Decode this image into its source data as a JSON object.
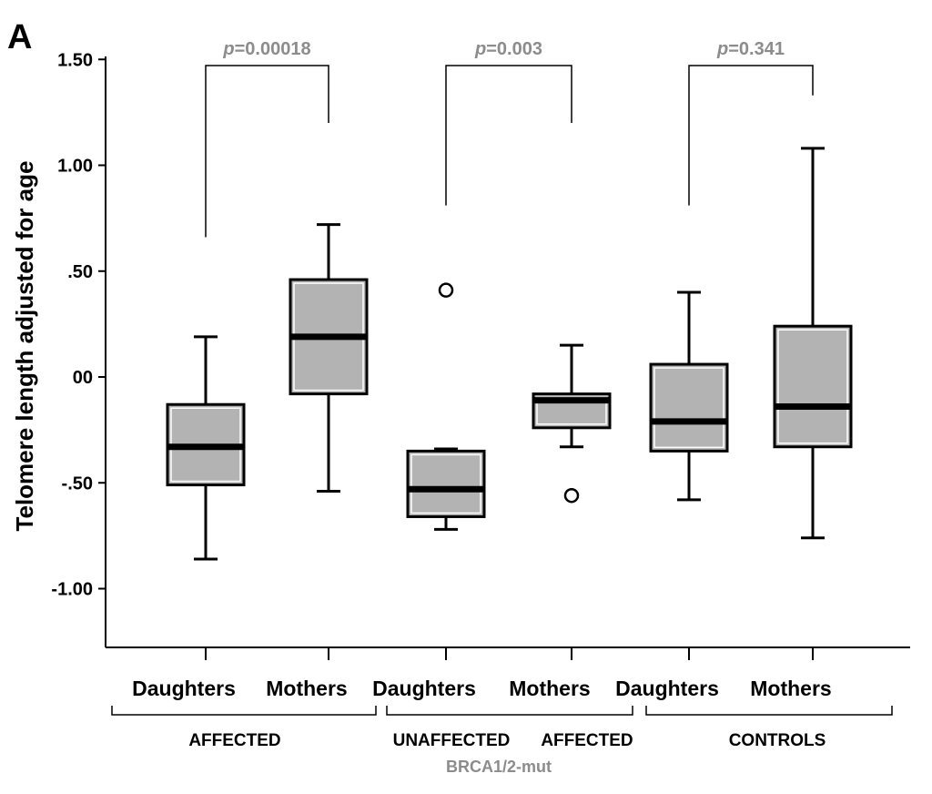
{
  "panel_label": "A",
  "chart_data": {
    "type": "box",
    "ylabel": "Telomere length adjusted for age",
    "ylim": [
      -1.25,
      1.5
    ],
    "yticks": [
      1.5,
      1.0,
      0.5,
      0.0,
      -0.5,
      -1.0
    ],
    "ytick_labels": [
      "1.50",
      "1.00",
      ".50",
      "00",
      "-.50",
      "-1.00"
    ],
    "grid": false,
    "box_color": "#b3b3b3",
    "boxes": [
      {
        "label": "Daughters",
        "group": "AFFECTED",
        "whisker_low": -0.86,
        "q1": -0.51,
        "median": -0.33,
        "q3": -0.13,
        "whisker_high": 0.19,
        "outliers": []
      },
      {
        "label": "Mothers",
        "group": "AFFECTED",
        "whisker_low": -0.54,
        "q1": -0.08,
        "median": 0.19,
        "q3": 0.46,
        "whisker_high": 0.72,
        "outliers": []
      },
      {
        "label": "Daughters",
        "group": "UNAFFECTED",
        "whisker_low": -0.72,
        "q1": -0.66,
        "median": -0.53,
        "q3": -0.35,
        "whisker_high": -0.34,
        "outliers": [
          0.41
        ]
      },
      {
        "label": "Mothers",
        "group": "AFFECTED",
        "whisker_low": -0.33,
        "q1": -0.24,
        "median": -0.11,
        "q3": -0.08,
        "whisker_high": 0.15,
        "outliers": [
          -0.56
        ]
      },
      {
        "label": "Daughters",
        "group": "CONTROLS",
        "whisker_low": -0.58,
        "q1": -0.35,
        "median": -0.21,
        "q3": 0.06,
        "whisker_high": 0.4,
        "outliers": []
      },
      {
        "label": "Mothers",
        "group": "CONTROLS",
        "whisker_low": -0.76,
        "q1": -0.33,
        "median": -0.14,
        "q3": 0.24,
        "whisker_high": 1.08,
        "outliers": []
      }
    ],
    "comparisons": [
      {
        "pair": [
          0,
          1
        ],
        "p_prefix": "p",
        "p_value": "=0.00018",
        "left_bottom": 0.66,
        "right_bottom": 1.2
      },
      {
        "pair": [
          2,
          3
        ],
        "p_prefix": "p",
        "p_value": "=0.003",
        "left_bottom": 0.81,
        "right_bottom": 1.2
      },
      {
        "pair": [
          4,
          5
        ],
        "p_prefix": "p",
        "p_value": "=0.341",
        "left_bottom": 0.81,
        "right_bottom": 1.33
      }
    ],
    "group_brackets": [
      {
        "span": [
          0,
          1
        ]
      },
      {
        "span": [
          2,
          3
        ]
      },
      {
        "span": [
          4,
          5
        ]
      }
    ],
    "group_labels": [
      {
        "text": "AFFECTED",
        "under": [
          0,
          1
        ]
      },
      {
        "text": "UNAFFECTED",
        "under": [
          2
        ]
      },
      {
        "text": "AFFECTED",
        "under": [
          3
        ]
      },
      {
        "text": "CONTROLS",
        "under": [
          4,
          5
        ]
      }
    ],
    "sublabel": "BRCA1/2-mut",
    "sublabel_color": "#8c8c8c",
    "p_color": "#8c8c8c"
  }
}
